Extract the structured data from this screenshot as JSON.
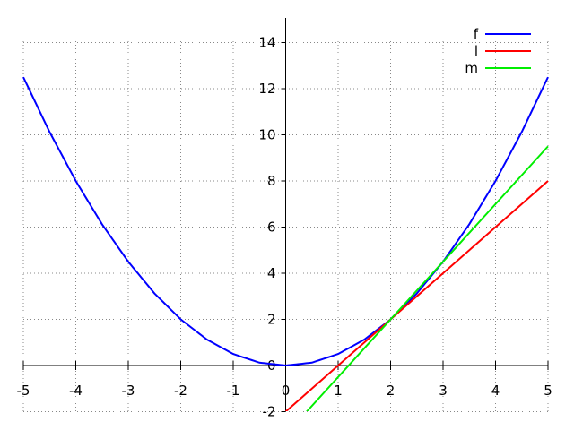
{
  "chart_data": {
    "type": "line",
    "title": "",
    "xlabel": "",
    "ylabel": "",
    "xlim": [
      -5,
      5
    ],
    "ylim": [
      -2,
      15
    ],
    "x_ticks": [
      -5,
      -4,
      -3,
      -2,
      -1,
      0,
      1,
      2,
      3,
      4,
      5
    ],
    "y_ticks": [
      -2,
      0,
      2,
      4,
      6,
      8,
      10,
      12,
      14
    ],
    "grid": true,
    "legend_position": "top-right",
    "series": [
      {
        "name": "f",
        "color": "#0000ff",
        "x": [
          -5,
          -4.5,
          -4,
          -3.5,
          -3,
          -2.5,
          -2,
          -1.5,
          -1,
          -0.5,
          0,
          0.5,
          1,
          1.5,
          2,
          2.5,
          3,
          3.5,
          4,
          4.5,
          5
        ],
        "y": [
          12.5,
          10.125,
          8,
          6.125,
          4.5,
          3.125,
          2,
          1.125,
          0.5,
          0.125,
          0,
          0.125,
          0.5,
          1.125,
          2,
          3.125,
          4.5,
          6.125,
          8,
          10.125,
          12.5
        ]
      },
      {
        "name": "l",
        "color": "#ff0000",
        "x": [
          0,
          1,
          2,
          3,
          4,
          5
        ],
        "y": [
          -2,
          0,
          2,
          4,
          6,
          8
        ]
      },
      {
        "name": "m",
        "color": "#00ee00",
        "x": [
          0.4,
          1,
          2,
          3,
          4,
          5
        ],
        "y": [
          -2,
          -0.5,
          2,
          4.5,
          7,
          9.5
        ]
      }
    ]
  }
}
